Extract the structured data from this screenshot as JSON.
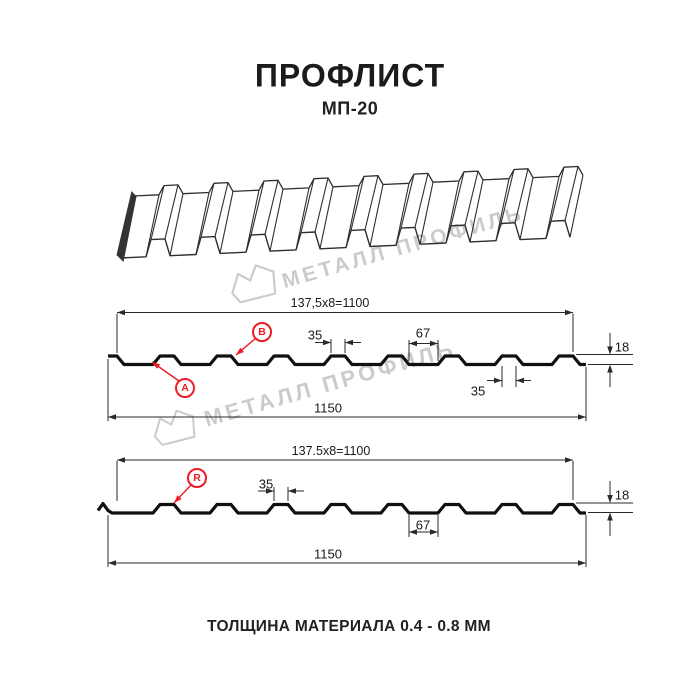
{
  "header": {
    "title": "ПРОФЛИСТ",
    "subtitle": "МП-20"
  },
  "watermark": {
    "text": "МЕТАЛЛ ПРОФИЛЬ"
  },
  "drawing": {
    "section1": {
      "top_dim": "137,5x8=1100",
      "rib_top_width": "35",
      "valley_width": "67",
      "height": "18",
      "rib_bottom_width": "35",
      "total_width": "1150",
      "labels": {
        "a": "A",
        "b": "B"
      }
    },
    "section2": {
      "top_dim": "137.5x8=1100",
      "rib_top_width": "35",
      "valley_width": "67",
      "height": "18",
      "total_width": "1150",
      "labels": {
        "r": "R"
      }
    }
  },
  "footer": {
    "text": "ТОЛЩИНА МАТЕРИАЛА 0.4 - 0.8 ММ"
  },
  "colors": {
    "accent": "#ee1c25",
    "line": "#2a2a2a",
    "profile": "#101010",
    "watermark": "#cbcbcb"
  }
}
